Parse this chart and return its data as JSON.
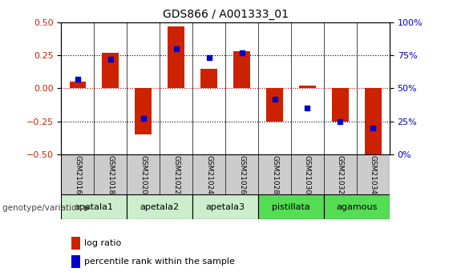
{
  "title": "GDS866 / A001333_01",
  "samples": [
    "GSM21016",
    "GSM21018",
    "GSM21020",
    "GSM21022",
    "GSM21024",
    "GSM21026",
    "GSM21028",
    "GSM21030",
    "GSM21032",
    "GSM21034"
  ],
  "log_ratio": [
    0.05,
    0.27,
    -0.35,
    0.47,
    0.15,
    0.28,
    -0.25,
    0.02,
    -0.25,
    -0.52
  ],
  "percentile_rank": [
    57,
    72,
    27,
    80,
    73,
    77,
    42,
    35,
    25,
    20
  ],
  "bar_color": "#cc2200",
  "dot_color": "#0000cc",
  "ylim_left": [
    -0.5,
    0.5
  ],
  "ylim_right": [
    0,
    100
  ],
  "yticks_left": [
    -0.5,
    -0.25,
    0.0,
    0.25,
    0.5
  ],
  "yticks_right": [
    0,
    25,
    50,
    75,
    100
  ],
  "yticklabels_right": [
    "0%",
    "25%",
    "50%",
    "75%",
    "100%"
  ],
  "groups": [
    {
      "label": "apetala1",
      "samples": [
        "GSM21016",
        "GSM21018"
      ],
      "color": "#cceecc"
    },
    {
      "label": "apetala2",
      "samples": [
        "GSM21020",
        "GSM21022"
      ],
      "color": "#cceecc"
    },
    {
      "label": "apetala3",
      "samples": [
        "GSM21024",
        "GSM21026"
      ],
      "color": "#cceecc"
    },
    {
      "label": "pistillata",
      "samples": [
        "GSM21028",
        "GSM21030"
      ],
      "color": "#55dd55"
    },
    {
      "label": "agamous",
      "samples": [
        "GSM21032",
        "GSM21034"
      ],
      "color": "#55dd55"
    }
  ],
  "legend_red": "log ratio",
  "legend_blue": "percentile rank within the sample",
  "genotype_label": "genotype/variation",
  "background_color": "#ffffff",
  "zero_line_color": "#cc0000",
  "sample_header_color": "#cccccc",
  "bar_width": 0.5
}
